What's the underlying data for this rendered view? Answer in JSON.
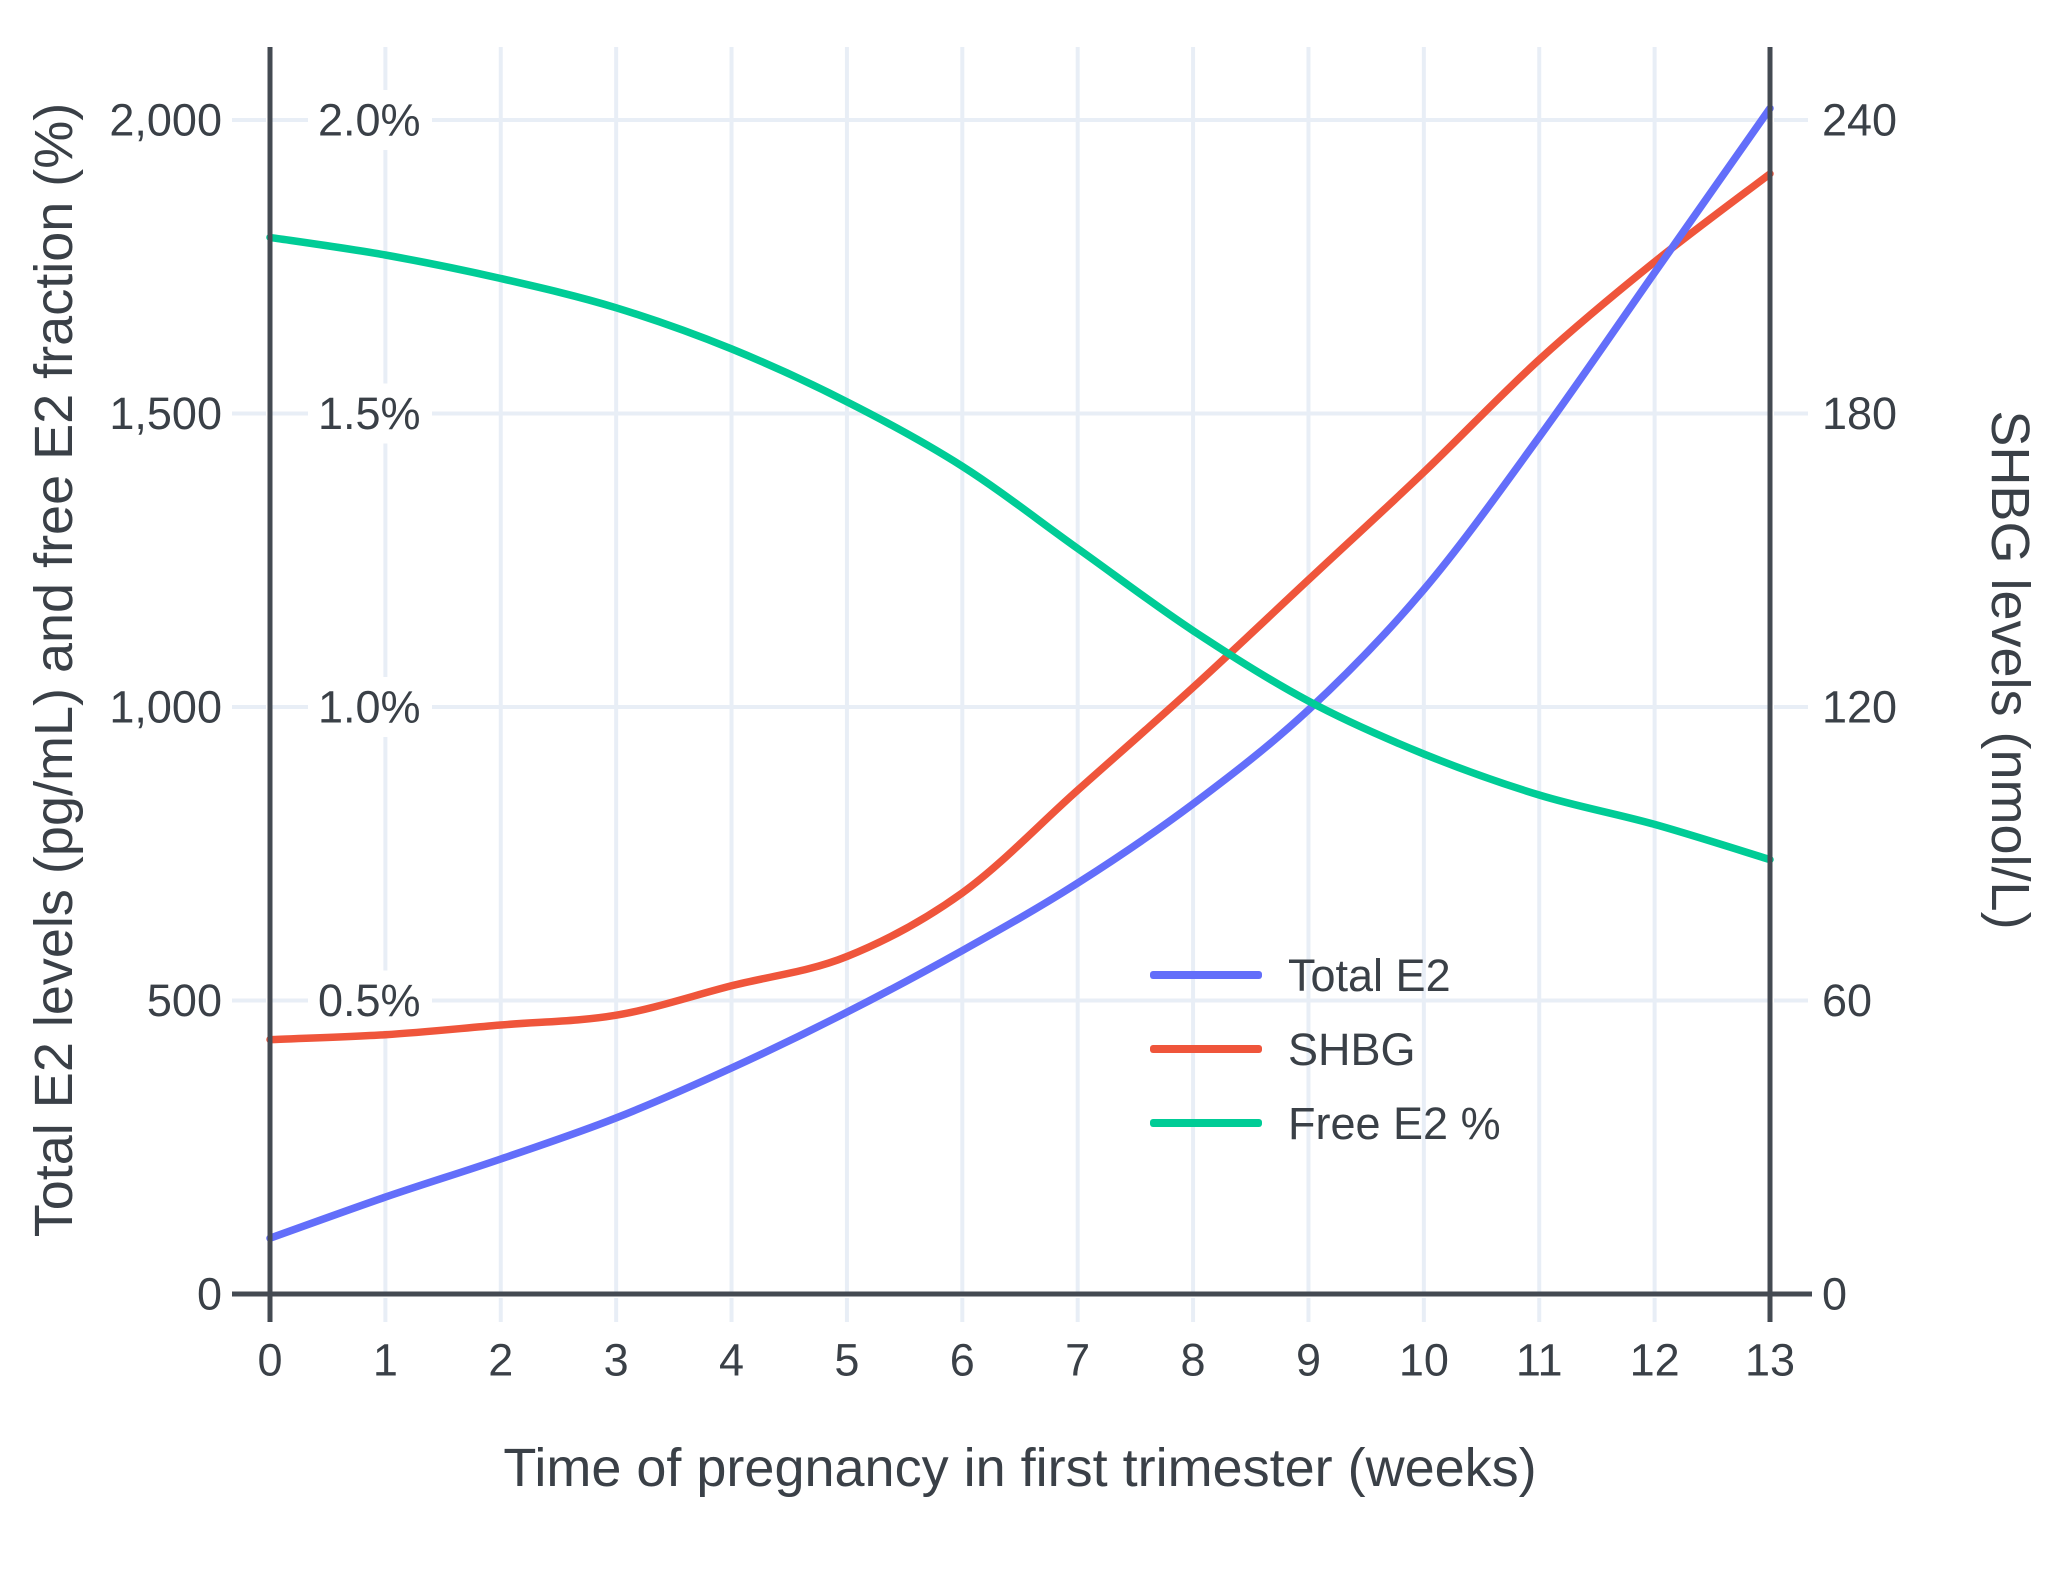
{
  "figure": {
    "background": "#ffffff",
    "text_color": "#3a4047",
    "axis_line_color": "#444a52",
    "gridline_color": "#e8eef6"
  },
  "chart_data": {
    "type": "line",
    "title": "",
    "xlabel": "Time of pregnancy in first trimester (weeks)",
    "ylabel_left": "Total E2 levels (pg/mL) and free E2 fraction (%)",
    "ylabel_right": "SHBG levels (nmol/L)",
    "x": [
      0,
      1,
      2,
      3,
      4,
      5,
      6,
      7,
      8,
      9,
      10,
      11,
      12,
      13
    ],
    "x_tick_labels": [
      "0",
      "1",
      "2",
      "3",
      "4",
      "5",
      "6",
      "7",
      "8",
      "9",
      "10",
      "11",
      "12",
      "13"
    ],
    "left_axis": {
      "range": [
        0,
        2125
      ],
      "ticks": [
        {
          "value": 0,
          "label": "0"
        },
        {
          "value": 500,
          "label": "500"
        },
        {
          "value": 1000,
          "label": "1,000"
        },
        {
          "value": 1500,
          "label": "1,500"
        },
        {
          "value": 2000,
          "label": "2,000"
        }
      ]
    },
    "free_fraction_inner_labels": [
      {
        "value": 500,
        "label": "0.5%"
      },
      {
        "value": 1000,
        "label": "1.0%"
      },
      {
        "value": 1500,
        "label": "1.5%"
      },
      {
        "value": 2000,
        "label": "2.0%"
      }
    ],
    "right_axis": {
      "range": [
        0,
        255
      ],
      "ticks": [
        {
          "value": 0,
          "label": "0"
        },
        {
          "value": 60,
          "label": "60"
        },
        {
          "value": 120,
          "label": "120"
        },
        {
          "value": 180,
          "label": "180"
        },
        {
          "value": 240,
          "label": "240"
        }
      ]
    },
    "grid": true,
    "legend_position": "inside-right-middle",
    "series": [
      {
        "name": "Total E2",
        "color": "#636EFA",
        "axis": "left",
        "unit": "pg/mL",
        "values": [
          95,
          165,
          230,
          300,
          385,
          480,
          585,
          700,
          835,
          995,
          1200,
          1460,
          1740,
          2020
        ]
      },
      {
        "name": "SHBG",
        "color": "#EF553B",
        "axis": "right",
        "unit": "nmol/L",
        "values": [
          52,
          53,
          55,
          57,
          63,
          69,
          82,
          103,
          124,
          146,
          168,
          191,
          211,
          229
        ]
      },
      {
        "name": "Free E2 %",
        "color": "#00CC96",
        "axis": "left-percent",
        "unit": "%",
        "values": [
          1.8,
          1.77,
          1.73,
          1.68,
          1.61,
          1.52,
          1.41,
          1.27,
          1.13,
          1.01,
          0.92,
          0.85,
          0.8,
          0.74
        ]
      }
    ]
  }
}
